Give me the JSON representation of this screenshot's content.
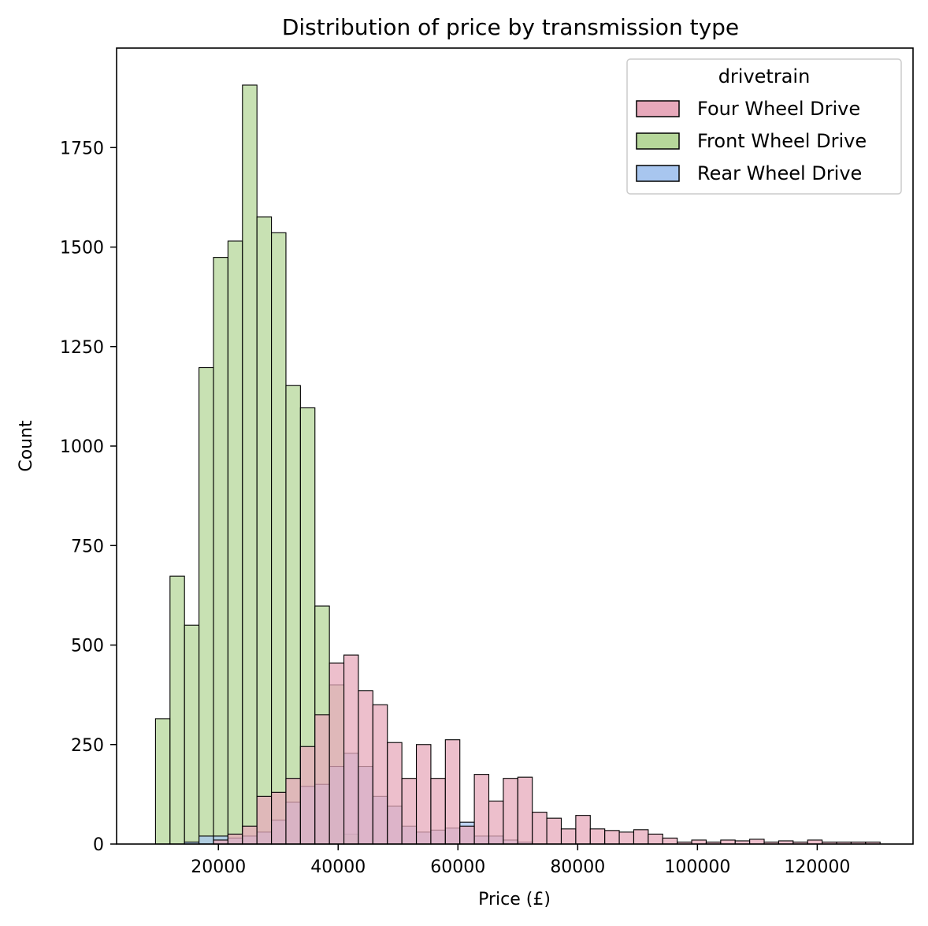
{
  "chart_data": {
    "type": "histogram",
    "title": "Distribution of price by transmission type",
    "xlabel": "Price (£)",
    "ylabel": "Count",
    "xlim": [
      3000,
      136000
    ],
    "ylim": [
      0,
      2000
    ],
    "xticks": [
      20000,
      40000,
      60000,
      80000,
      100000,
      120000
    ],
    "yticks": [
      0,
      250,
      500,
      750,
      1000,
      1250,
      1500,
      1750
    ],
    "bin_start": 9500,
    "bin_width": 2420,
    "legend": {
      "title": "drivetrain",
      "placement": "top-right",
      "entries": [
        "Four Wheel Drive",
        "Front Wheel Drive",
        "Rear Wheel Drive"
      ]
    },
    "series": [
      {
        "name": "Front Wheel Drive",
        "color": "#b6d79a",
        "values": [
          315,
          673,
          550,
          1197,
          1474,
          1515,
          1907,
          1576,
          1536,
          1152,
          1096,
          598,
          400,
          25,
          0,
          0,
          0,
          0,
          0,
          0
        ]
      },
      {
        "name": "Rear Wheel Drive",
        "color": "#a8c6ef",
        "values": [
          0,
          0,
          5,
          20,
          20,
          15,
          20,
          30,
          60,
          105,
          145,
          150,
          195,
          228,
          195,
          120,
          95,
          45,
          30,
          35,
          40,
          55,
          20,
          20,
          10,
          5
        ]
      },
      {
        "name": "Four Wheel Drive",
        "color": "#e7a9bb",
        "values": [
          0,
          0,
          0,
          0,
          10,
          25,
          45,
          120,
          130,
          165,
          245,
          325,
          455,
          475,
          385,
          350,
          255,
          165,
          250,
          165,
          262,
          45,
          175,
          108,
          165,
          168,
          80,
          65,
          38,
          72,
          38,
          34,
          30,
          36,
          25,
          15,
          5,
          10,
          5,
          10,
          8,
          12,
          5,
          8,
          5,
          10,
          5,
          5,
          5,
          5
        ]
      }
    ]
  }
}
